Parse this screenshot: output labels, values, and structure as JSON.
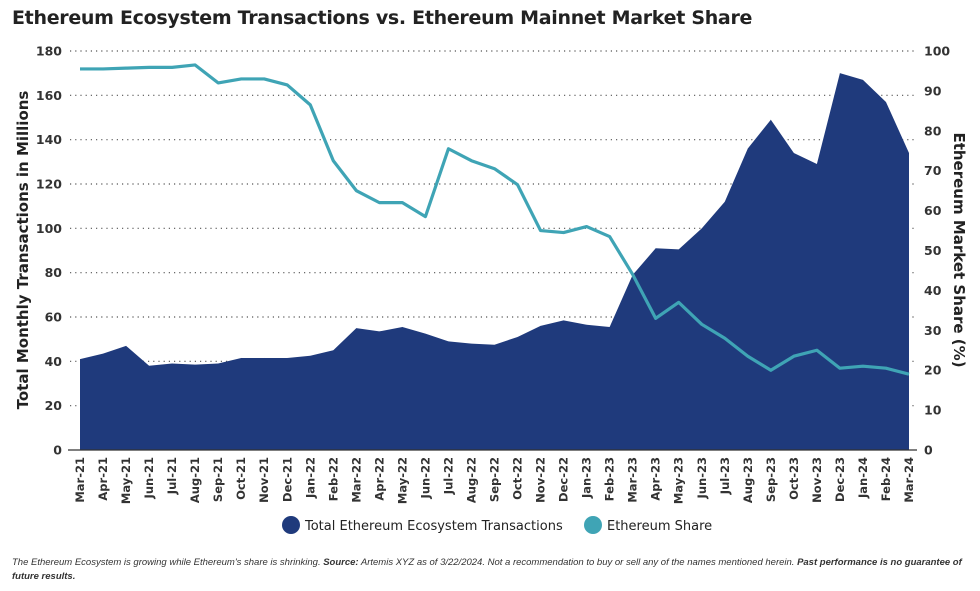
{
  "chart_data": {
    "type": "area+line",
    "title": "Ethereum Ecosystem Transactions vs. Ethereum Mainnet Market Share",
    "ylabel_left": "Total Monthly Transactions in Millions",
    "ylabel_right": "Ethereum Market Share (%)",
    "ylim_left": [
      0,
      180
    ],
    "ylim_right": [
      0,
      100
    ],
    "yticks_left": [
      0,
      20,
      40,
      60,
      80,
      100,
      120,
      140,
      160,
      180
    ],
    "yticks_right": [
      0,
      10,
      20,
      30,
      40,
      50,
      60,
      70,
      80,
      90,
      100
    ],
    "grid": "horizontal dotted",
    "legend": "bottom",
    "categories": [
      "Mar-21",
      "Apr-21",
      "May-21",
      "Jun-21",
      "Jul-21",
      "Aug-21",
      "Sep-21",
      "Oct-21",
      "Nov-21",
      "Dec-21",
      "Jan-22",
      "Feb-22",
      "Mar-22",
      "Apr-22",
      "May-22",
      "Jun-22",
      "Jul-22",
      "Aug-22",
      "Sep-22",
      "Oct-22",
      "Nov-22",
      "Dec-22",
      "Jan-23",
      "Feb-23",
      "Mar-23",
      "Apr-23",
      "May-23",
      "Jun-23",
      "Jul-23",
      "Aug-23",
      "Sep-23",
      "Oct-23",
      "Nov-23",
      "Dec-23",
      "Jan-24",
      "Feb-24",
      "Mar-24"
    ],
    "series": [
      {
        "name": "Total Ethereum Ecosystem Transactions",
        "type": "area",
        "axis": "left",
        "color": "#1f3a7c",
        "values": [
          41,
          43.5,
          47,
          38,
          39,
          38.5,
          39,
          41.5,
          41.5,
          41.5,
          42.5,
          45,
          55,
          53.5,
          55.5,
          52.5,
          49,
          48,
          47.5,
          51,
          56,
          58.5,
          56.5,
          55.5,
          79,
          91,
          90.5,
          100,
          112,
          136,
          149,
          134,
          129,
          170,
          167,
          157,
          134
        ]
      },
      {
        "name": "Ethereum Share",
        "type": "line",
        "axis": "right",
        "color": "#3fa4b5",
        "values": [
          95.5,
          95.5,
          95.7,
          95.9,
          95.9,
          96.5,
          92,
          93,
          93,
          91.5,
          86.5,
          72.5,
          65,
          62,
          62,
          58.5,
          75.5,
          72.5,
          70.5,
          66.5,
          55,
          54.5,
          56,
          53.5,
          44,
          33,
          37,
          31.5,
          28,
          23.5,
          20,
          23.5,
          25,
          20.5,
          21,
          20.5,
          19
        ]
      }
    ]
  },
  "footnote": {
    "text1": "The Ethereum Ecosystem is growing while Ethereum's share is shrinking. ",
    "source_label": "Source:",
    "text2": " Artemis XYZ as of 3/22/2024. Not a recommendation to buy or sell any of the names mentioned herein. ",
    "disclaimer": "Past performance is no guarantee of future results."
  }
}
